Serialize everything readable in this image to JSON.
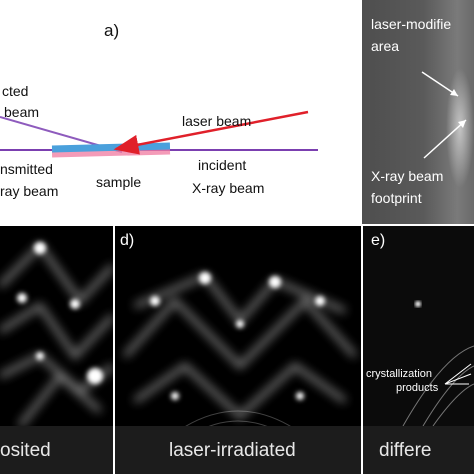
{
  "panel_a": {
    "letter": "a)",
    "labels": {
      "reflected_1": "cted",
      "reflected_2": "beam",
      "laser_beam": "laser beam",
      "transmitted_1": "nsmitted",
      "transmitted_2": "ray beam",
      "sample": "sample",
      "incident_1": "incident",
      "incident_2": "X-ray beam"
    },
    "colors": {
      "reflected": "#8e5bbd",
      "laser": "#e0202a",
      "xray": "#7b3fb0",
      "sample_top": "#4aa0dc",
      "sample_glow": "#f07aa0"
    }
  },
  "panel_b": {
    "label_1": "laser-modifie",
    "label_2": "area",
    "footprint_1": "X-ray beam",
    "footprint_2": "footprint"
  },
  "panel_c": {
    "caption": "osited"
  },
  "panel_d": {
    "letter": "d)",
    "caption": "laser-irradiated"
  },
  "panel_e": {
    "letter": "e)",
    "annotation_1": "crystallization",
    "annotation_2": "products",
    "caption": "differe"
  }
}
